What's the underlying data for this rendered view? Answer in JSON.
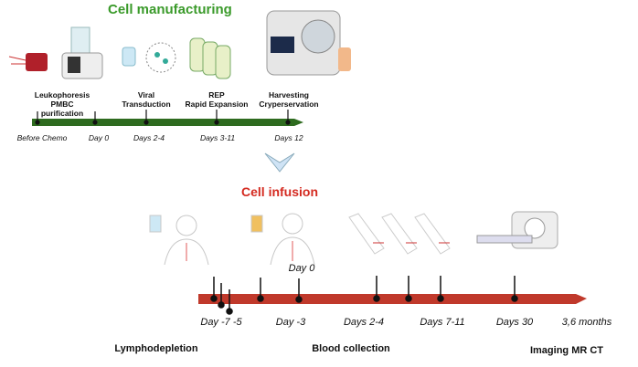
{
  "manufacturing": {
    "title": "Cell manufacturing",
    "color": "#3a9a2a",
    "bar_color": "#2e6b1f",
    "steps": [
      {
        "label": "Leukophoresis\nPMBC\npurification",
        "day": "Before Chemo"
      },
      {
        "label": "",
        "day": "Day 0"
      },
      {
        "label": "Viral\nTransduction",
        "day": "Days 2-4"
      },
      {
        "label": "REP\nRapid Expansion",
        "day": "Days 3-11"
      },
      {
        "label": "Harvesting\nCryperservation",
        "day": "Days 12"
      }
    ]
  },
  "infusion": {
    "title": "Cell infusion",
    "color": "#d42a20",
    "bar_color": "#c0392b",
    "day0": "Day 0",
    "days": [
      "Day -7 -5",
      "Day -3",
      "Days 2-4",
      "Days 7-11",
      "Days 30",
      "3,6 months"
    ],
    "phases": [
      "Lymphodepletion",
      "Blood collection",
      "Imaging MR CT"
    ]
  }
}
